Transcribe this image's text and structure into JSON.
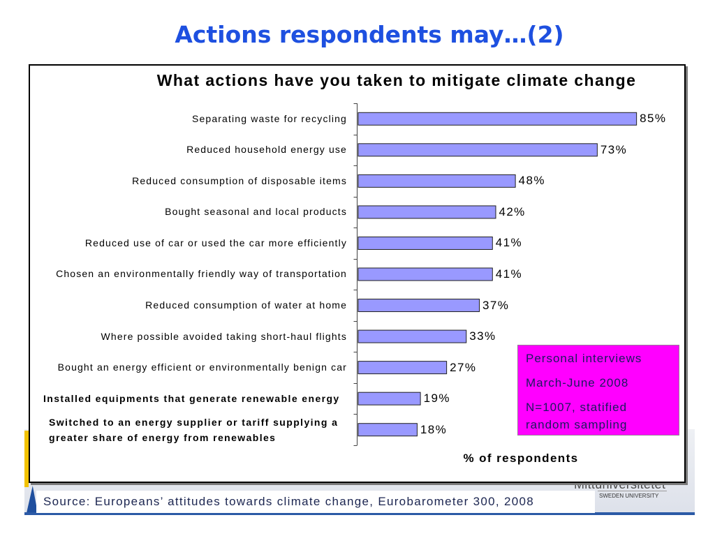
{
  "slide": {
    "title": "Actions respondents may…(2)",
    "title_color": "#1e50e0"
  },
  "chart_data": {
    "type": "bar",
    "horizontal": true,
    "title": "What actions have you taken to mitigate climate change",
    "xlabel": "% of respondents",
    "ylabel": "",
    "xlim": [
      0,
      100
    ],
    "grid": false,
    "bar_color": "#9999ff",
    "categories": [
      "Separating waste for recycling",
      "Reduced household energy use",
      "Reduced consumption of disposable items",
      "Bought seasonal and local products",
      "Reduced use of car or used the car more efficiently",
      "Chosen an environmentally friendly way of transportation",
      "Reduced consumption of water at home",
      "Where possible avoided taking short-haul flights",
      "Bought an energy efficient or environmentally benign car",
      "Installed equipments that generate renewable energy",
      "Switched to an energy supplier or tariff supplying a greater share of energy from renewables"
    ],
    "values": [
      85,
      73,
      48,
      42,
      41,
      41,
      37,
      33,
      27,
      19,
      18
    ],
    "data_labels": [
      "85%",
      "73%",
      "48%",
      "42%",
      "41%",
      "41%",
      "37%",
      "33%",
      "27%",
      "19%",
      "18%"
    ]
  },
  "info_box": {
    "background": "#ff00ff",
    "lines": [
      "Personal interviews",
      "March-June 2008",
      "N=1007, statified random sampling"
    ]
  },
  "source": "Source: Europeans’ attitudes towards climate change, Eurobarometer 300, 2008",
  "logo": {
    "name": "Mittuniversitetet",
    "tagline": "SWEDEN UNIVERSITY"
  }
}
